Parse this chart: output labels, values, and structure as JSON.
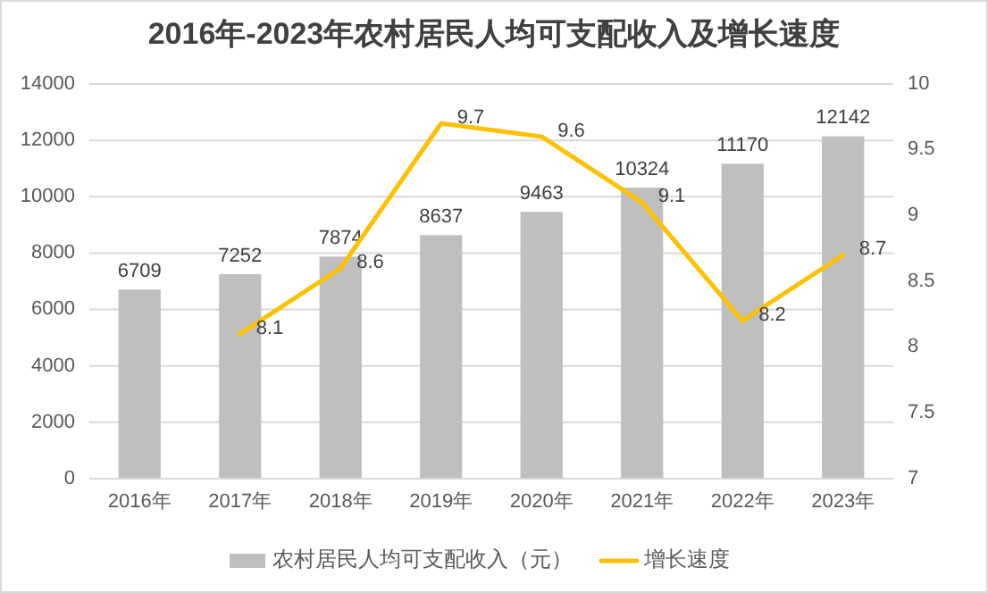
{
  "chart_data": {
    "type": "bar",
    "title": "2016年-2023年农村居民人均可支配收入及增长速度",
    "categories": [
      "2016年",
      "2017年",
      "2018年",
      "2019年",
      "2020年",
      "2021年",
      "2022年",
      "2023年"
    ],
    "series": [
      {
        "name": "农村居民人均可支配收入（元）",
        "color": "#bfbfbf",
        "values": [
          6709,
          7252,
          7874,
          8637,
          9463,
          10324,
          11170,
          12142
        ]
      },
      {
        "name": "增长速度",
        "type": "line",
        "axis": "y2",
        "color": "#ffc000",
        "values": [
          null,
          8.1,
          8.6,
          9.7,
          9.6,
          9.1,
          8.2,
          8.7
        ]
      }
    ],
    "data_labels": true,
    "ylim": [
      0,
      14000
    ],
    "yticks": [
      0,
      2000,
      4000,
      6000,
      8000,
      10000,
      12000,
      14000
    ],
    "y2lim": [
      7,
      10
    ],
    "y2ticks": [
      7,
      7.5,
      8,
      8.5,
      9,
      9.5,
      10
    ],
    "grid": "y",
    "legend": "bottom",
    "marker": "none",
    "line_style": "solid"
  }
}
